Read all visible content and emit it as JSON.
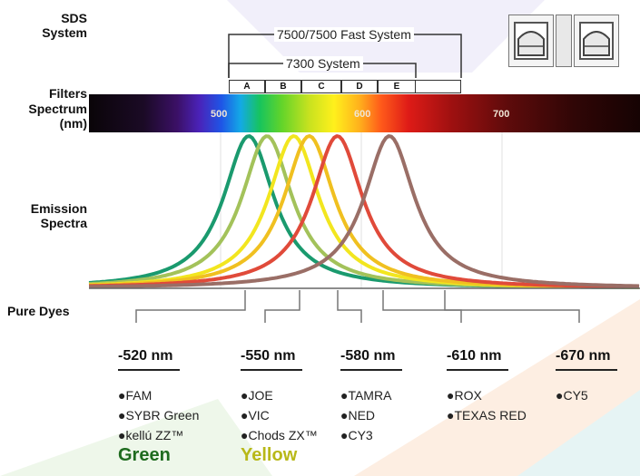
{
  "labels": {
    "sds_system": "SDS\nSystem",
    "filters": "Filters",
    "spectrum": "Spectrum\n(nm)",
    "emission_spectra": "Emission\nSpectra",
    "pure_dyes": "Pure Dyes"
  },
  "systems": [
    {
      "name": "7500/7500 Fast System"
    },
    {
      "name": "7300 System"
    }
  ],
  "filters": [
    "A",
    "B",
    "C",
    "D",
    "E"
  ],
  "spectrum_ticks": [
    {
      "label": "500",
      "nm": 500
    },
    {
      "label": "600",
      "nm": 600
    },
    {
      "label": "700",
      "nm": 700
    }
  ],
  "emission_peaks": [
    {
      "nm": 520,
      "color": "#1a9a6e"
    },
    {
      "nm": 533,
      "color": "#a3c25a"
    },
    {
      "nm": 552,
      "color": "#f2e61f"
    },
    {
      "nm": 563,
      "color": "#f0c020"
    },
    {
      "nm": 583,
      "color": "#e04a3a"
    },
    {
      "nm": 620,
      "color": "#9a6e66"
    }
  ],
  "dye_groups": [
    {
      "wavelength": "-520 nm",
      "dyes": [
        "●FAM",
        "●SYBR Green",
        "●kellú ZZ™"
      ],
      "color_label": "Green",
      "color": "#1e6b1e"
    },
    {
      "wavelength": "-550 nm",
      "dyes": [
        "●JOE",
        "●VIC",
        "●Chods ZX™"
      ],
      "color_label": "Yellow",
      "color": "#b8b818"
    },
    {
      "wavelength": "-580 nm",
      "dyes": [
        "●TAMRA",
        "●NED",
        "●CY3"
      ],
      "color_label": "",
      "color": "#111111"
    },
    {
      "wavelength": "-610 nm",
      "dyes": [
        "●ROX",
        "●TEXAS RED"
      ],
      "color_label": "",
      "color": "#111111"
    },
    {
      "wavelength": "-670 nm",
      "dyes": [
        "●CY5"
      ],
      "color_label": "",
      "color": "#111111"
    }
  ]
}
